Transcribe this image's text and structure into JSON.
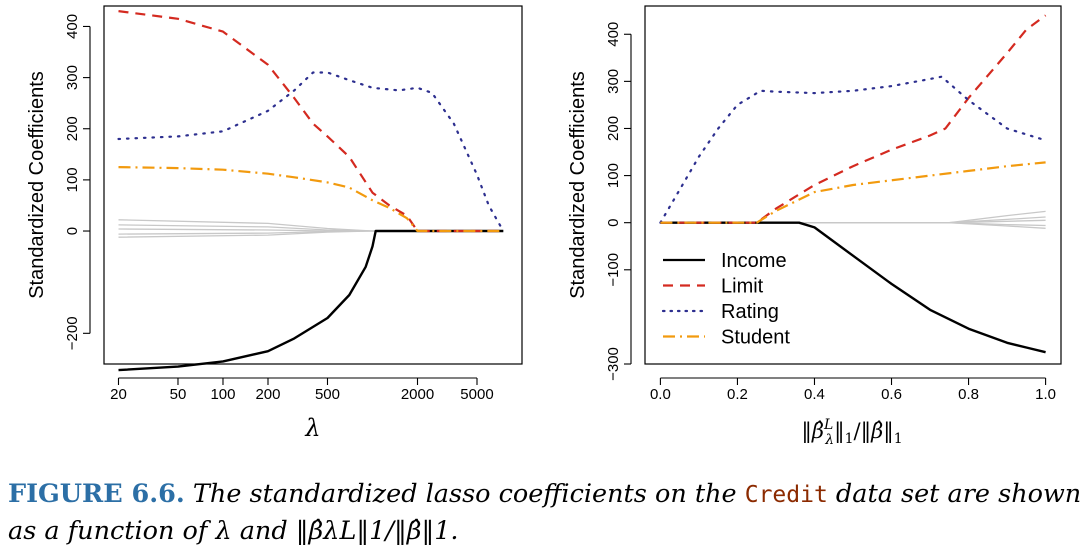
{
  "colors": {
    "income": "#000000",
    "limit": "#d42a20",
    "rating": "#2d2f8f",
    "student": "#f29a0e",
    "others": "#c8c8c8",
    "caption_label": "#2c6fa6",
    "caption_dataset": "#8b2a00"
  },
  "chart_data": [
    {
      "type": "line",
      "title": "",
      "xlabel": "λ",
      "ylabel": "Standardized Coefficients",
      "x_scale": "log",
      "xlim": [
        16,
        10000
      ],
      "ylim": [
        -260,
        440
      ],
      "xticks": [
        20,
        50,
        100,
        200,
        500,
        2000,
        5000
      ],
      "xtick_labels": [
        "20",
        "50",
        "100",
        "200",
        "500",
        "2000",
        "5000"
      ],
      "yticks": [
        -200,
        0,
        100,
        200,
        300,
        400
      ],
      "ytick_labels": [
        "−200",
        "0",
        "100",
        "200",
        "300",
        "400"
      ],
      "grid": false,
      "series": [
        {
          "name": "Income",
          "style": "solid",
          "x": [
            20,
            50,
            100,
            200,
            300,
            500,
            700,
            900,
            1000,
            1050,
            7500
          ],
          "y": [
            -272,
            -265,
            -255,
            -235,
            -210,
            -170,
            -125,
            -70,
            -30,
            0,
            0
          ]
        },
        {
          "name": "Limit",
          "style": "dashed",
          "x": [
            20,
            50,
            100,
            200,
            300,
            400,
            500,
            700,
            1000,
            1300,
            1700,
            2000,
            7500
          ],
          "y": [
            430,
            415,
            390,
            325,
            260,
            210,
            185,
            145,
            75,
            50,
            30,
            0,
            0
          ]
        },
        {
          "name": "Rating",
          "style": "dotted",
          "x": [
            20,
            50,
            100,
            200,
            300,
            400,
            500,
            700,
            1000,
            1500,
            2000,
            2500,
            3500,
            5000,
            6000,
            7500
          ],
          "y": [
            180,
            185,
            195,
            235,
            275,
            310,
            310,
            295,
            280,
            275,
            280,
            270,
            210,
            110,
            50,
            0
          ]
        },
        {
          "name": "Student",
          "style": "dashdot",
          "x": [
            20,
            50,
            100,
            200,
            300,
            500,
            700,
            1000,
            1300,
            1700,
            2000,
            7500
          ],
          "y": [
            125,
            123,
            120,
            112,
            105,
            95,
            85,
            60,
            45,
            25,
            0,
            0
          ]
        }
      ],
      "other_series": [
        {
          "x": [
            20,
            200,
            500,
            1000,
            7500
          ],
          "y": [
            22,
            15,
            5,
            0,
            0
          ]
        },
        {
          "x": [
            20,
            200,
            500,
            1000,
            7500
          ],
          "y": [
            12,
            8,
            2,
            0,
            0
          ]
        },
        {
          "x": [
            20,
            200,
            500,
            1000,
            7500
          ],
          "y": [
            4,
            2,
            0,
            0,
            0
          ]
        },
        {
          "x": [
            20,
            200,
            500,
            1000,
            7500
          ],
          "y": [
            -6,
            -4,
            -1,
            0,
            0
          ]
        },
        {
          "x": [
            20,
            200,
            500,
            1000,
            7500
          ],
          "y": [
            -12,
            -8,
            -2,
            0,
            0
          ]
        }
      ]
    },
    {
      "type": "line",
      "title": "",
      "xlabel": "‖β̂λL‖1/‖β̂‖1",
      "ylabel": "Standardized Coefficients",
      "x_scale": "linear",
      "xlim": [
        -0.04,
        1.04
      ],
      "ylim": [
        -300,
        460
      ],
      "xticks": [
        0.0,
        0.2,
        0.4,
        0.6,
        0.8,
        1.0
      ],
      "xtick_labels": [
        "0.0",
        "0.2",
        "0.4",
        "0.6",
        "0.8",
        "1.0"
      ],
      "yticks": [
        -300,
        -100,
        0,
        100,
        200,
        300,
        400
      ],
      "ytick_labels": [
        "−300",
        "−100",
        "0",
        "100",
        "200",
        "300",
        "400"
      ],
      "grid": false,
      "legend_position": "bottom-left",
      "legend": [
        "Income",
        "Limit",
        "Rating",
        "Student"
      ],
      "series": [
        {
          "name": "Income",
          "style": "solid",
          "x": [
            0.0,
            0.36,
            0.4,
            0.5,
            0.6,
            0.7,
            0.8,
            0.9,
            0.95,
            1.0
          ],
          "y": [
            0,
            0,
            -10,
            -70,
            -130,
            -185,
            -225,
            -255,
            -265,
            -275
          ]
        },
        {
          "name": "Limit",
          "style": "dashed",
          "x": [
            0.0,
            0.25,
            0.3,
            0.4,
            0.5,
            0.6,
            0.7,
            0.74,
            0.8,
            0.9,
            0.95,
            1.0
          ],
          "y": [
            0,
            0,
            30,
            80,
            120,
            155,
            185,
            200,
            265,
            360,
            410,
            440
          ]
        },
        {
          "name": "Rating",
          "style": "dotted",
          "x": [
            0.0,
            0.05,
            0.1,
            0.15,
            0.2,
            0.26,
            0.3,
            0.4,
            0.5,
            0.6,
            0.7,
            0.73,
            0.8,
            0.9,
            1.0
          ],
          "y": [
            0,
            70,
            140,
            200,
            250,
            280,
            278,
            275,
            280,
            290,
            305,
            310,
            260,
            200,
            175
          ]
        },
        {
          "name": "Student",
          "style": "dashdot",
          "x": [
            0.0,
            0.25,
            0.3,
            0.4,
            0.5,
            0.6,
            0.7,
            0.8,
            0.9,
            1.0
          ],
          "y": [
            0,
            0,
            25,
            65,
            80,
            90,
            100,
            110,
            120,
            128
          ]
        }
      ],
      "other_series": [
        {
          "x": [
            0.0,
            0.75,
            0.9,
            1.0
          ],
          "y": [
            0,
            0,
            15,
            24
          ]
        },
        {
          "x": [
            0.0,
            0.75,
            0.9,
            1.0
          ],
          "y": [
            0,
            0,
            7,
            12
          ]
        },
        {
          "x": [
            0.0,
            0.75,
            0.9,
            1.0
          ],
          "y": [
            0,
            0,
            3,
            5
          ]
        },
        {
          "x": [
            0.0,
            0.75,
            0.9,
            1.0
          ],
          "y": [
            0,
            0,
            -4,
            -6
          ]
        },
        {
          "x": [
            0.0,
            0.75,
            0.9,
            1.0
          ],
          "y": [
            0,
            0,
            -7,
            -12
          ]
        }
      ]
    }
  ],
  "caption": {
    "label": "FIGURE 6.6.",
    "text1": " The standardized lasso coefficients on the ",
    "dataset": "Credit",
    "text2": " data set are shown as a function of ",
    "math1": "λ",
    "text3": " and ",
    "math2": "‖β̂λL‖1/‖β̂‖1",
    "text4": "."
  }
}
